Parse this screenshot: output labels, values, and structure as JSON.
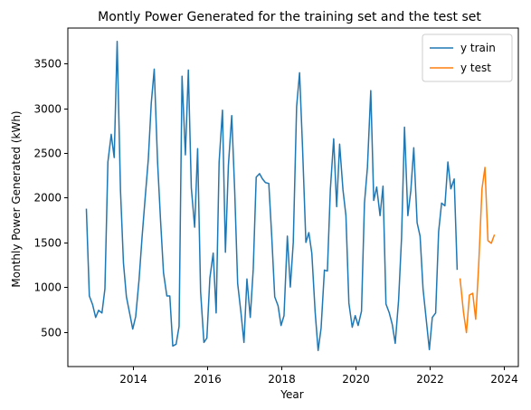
{
  "chart_data": {
    "type": "line",
    "title": "Montly Power Generated for the training set and the test set",
    "xlabel": "Year",
    "ylabel": "Monthly Power Generated (kWh)",
    "xlim": [
      2012.25,
      2024.4
    ],
    "ylim": [
      110,
      3900
    ],
    "x_ticks": [
      2014,
      2016,
      2018,
      2020,
      2022,
      2024
    ],
    "y_ticks": [
      500,
      1000,
      1500,
      2000,
      2500,
      3000,
      3500
    ],
    "grid": false,
    "legend_position": "top-right",
    "series": [
      {
        "name": "y train",
        "color": "#1f77b4",
        "x": [
          2012.75,
          2012.83,
          2012.92,
          2013.0,
          2013.08,
          2013.17,
          2013.25,
          2013.33,
          2013.42,
          2013.5,
          2013.58,
          2013.67,
          2013.75,
          2013.83,
          2013.92,
          2014.0,
          2014.08,
          2014.17,
          2014.25,
          2014.33,
          2014.42,
          2014.5,
          2014.58,
          2014.67,
          2014.75,
          2014.83,
          2014.92,
          2015.0,
          2015.08,
          2015.17,
          2015.25,
          2015.33,
          2015.42,
          2015.5,
          2015.58,
          2015.67,
          2015.75,
          2015.83,
          2015.92,
          2016.0,
          2016.08,
          2016.17,
          2016.25,
          2016.33,
          2016.42,
          2016.5,
          2016.58,
          2016.67,
          2016.75,
          2016.83,
          2016.92,
          2017.0,
          2017.08,
          2017.17,
          2017.25,
          2017.33,
          2017.42,
          2017.5,
          2017.58,
          2017.67,
          2017.75,
          2017.83,
          2017.92,
          2018.0,
          2018.08,
          2018.17,
          2018.25,
          2018.33,
          2018.42,
          2018.5,
          2018.58,
          2018.67,
          2018.75,
          2018.83,
          2018.92,
          2019.0,
          2019.08,
          2019.17,
          2019.25,
          2019.33,
          2019.42,
          2019.5,
          2019.58,
          2019.67,
          2019.75,
          2019.83,
          2019.92,
          2020.0,
          2020.08,
          2020.17,
          2020.25,
          2020.33,
          2020.42,
          2020.5,
          2020.58,
          2020.67,
          2020.75,
          2020.83,
          2020.92,
          2021.0,
          2021.08,
          2021.17,
          2021.25,
          2021.33,
          2021.42,
          2021.5,
          2021.58,
          2021.67,
          2021.75,
          2021.83,
          2021.92,
          2022.0,
          2022.08,
          2022.17,
          2022.25,
          2022.33,
          2022.42,
          2022.5,
          2022.58,
          2022.67,
          2022.75
        ],
        "y": [
          1870,
          900,
          800,
          660,
          740,
          710,
          980,
          2400,
          2710,
          2450,
          3750,
          2080,
          1270,
          890,
          700,
          530,
          670,
          1080,
          1550,
          1970,
          2430,
          3060,
          3440,
          2400,
          1750,
          1160,
          900,
          900,
          340,
          360,
          560,
          3360,
          2480,
          3430,
          2110,
          1670,
          2550,
          950,
          380,
          430,
          1100,
          1380,
          710,
          2400,
          2980,
          1390,
          2360,
          2920,
          2080,
          1040,
          710,
          380,
          1090,
          660,
          1200,
          2230,
          2270,
          2210,
          2170,
          2160,
          1560,
          890,
          790,
          570,
          680,
          1570,
          1000,
          1500,
          3020,
          3400,
          2560,
          1500,
          1610,
          1380,
          720,
          290,
          540,
          1190,
          1180,
          2090,
          2660,
          1900,
          2600,
          2090,
          1800,
          820,
          550,
          680,
          570,
          730,
          1940,
          2340,
          3200,
          1970,
          2120,
          1800,
          2130,
          810,
          710,
          580,
          370,
          850,
          1550,
          2790,
          1800,
          2080,
          2560,
          1720,
          1570,
          980,
          620,
          300,
          660,
          710,
          1620,
          1940,
          1910,
          2400,
          2100,
          2210,
          1200
        ]
      },
      {
        "name": "y test",
        "color": "#ff7f0e",
        "x": [
          2022.83,
          2022.92,
          2023.0,
          2023.08,
          2023.17,
          2023.25,
          2023.33,
          2023.42,
          2023.5,
          2023.58,
          2023.67,
          2023.75
        ],
        "y": [
          1090,
          720,
          490,
          910,
          930,
          640,
          1240,
          2100,
          2340,
          1520,
          1490,
          1580
        ]
      }
    ]
  }
}
